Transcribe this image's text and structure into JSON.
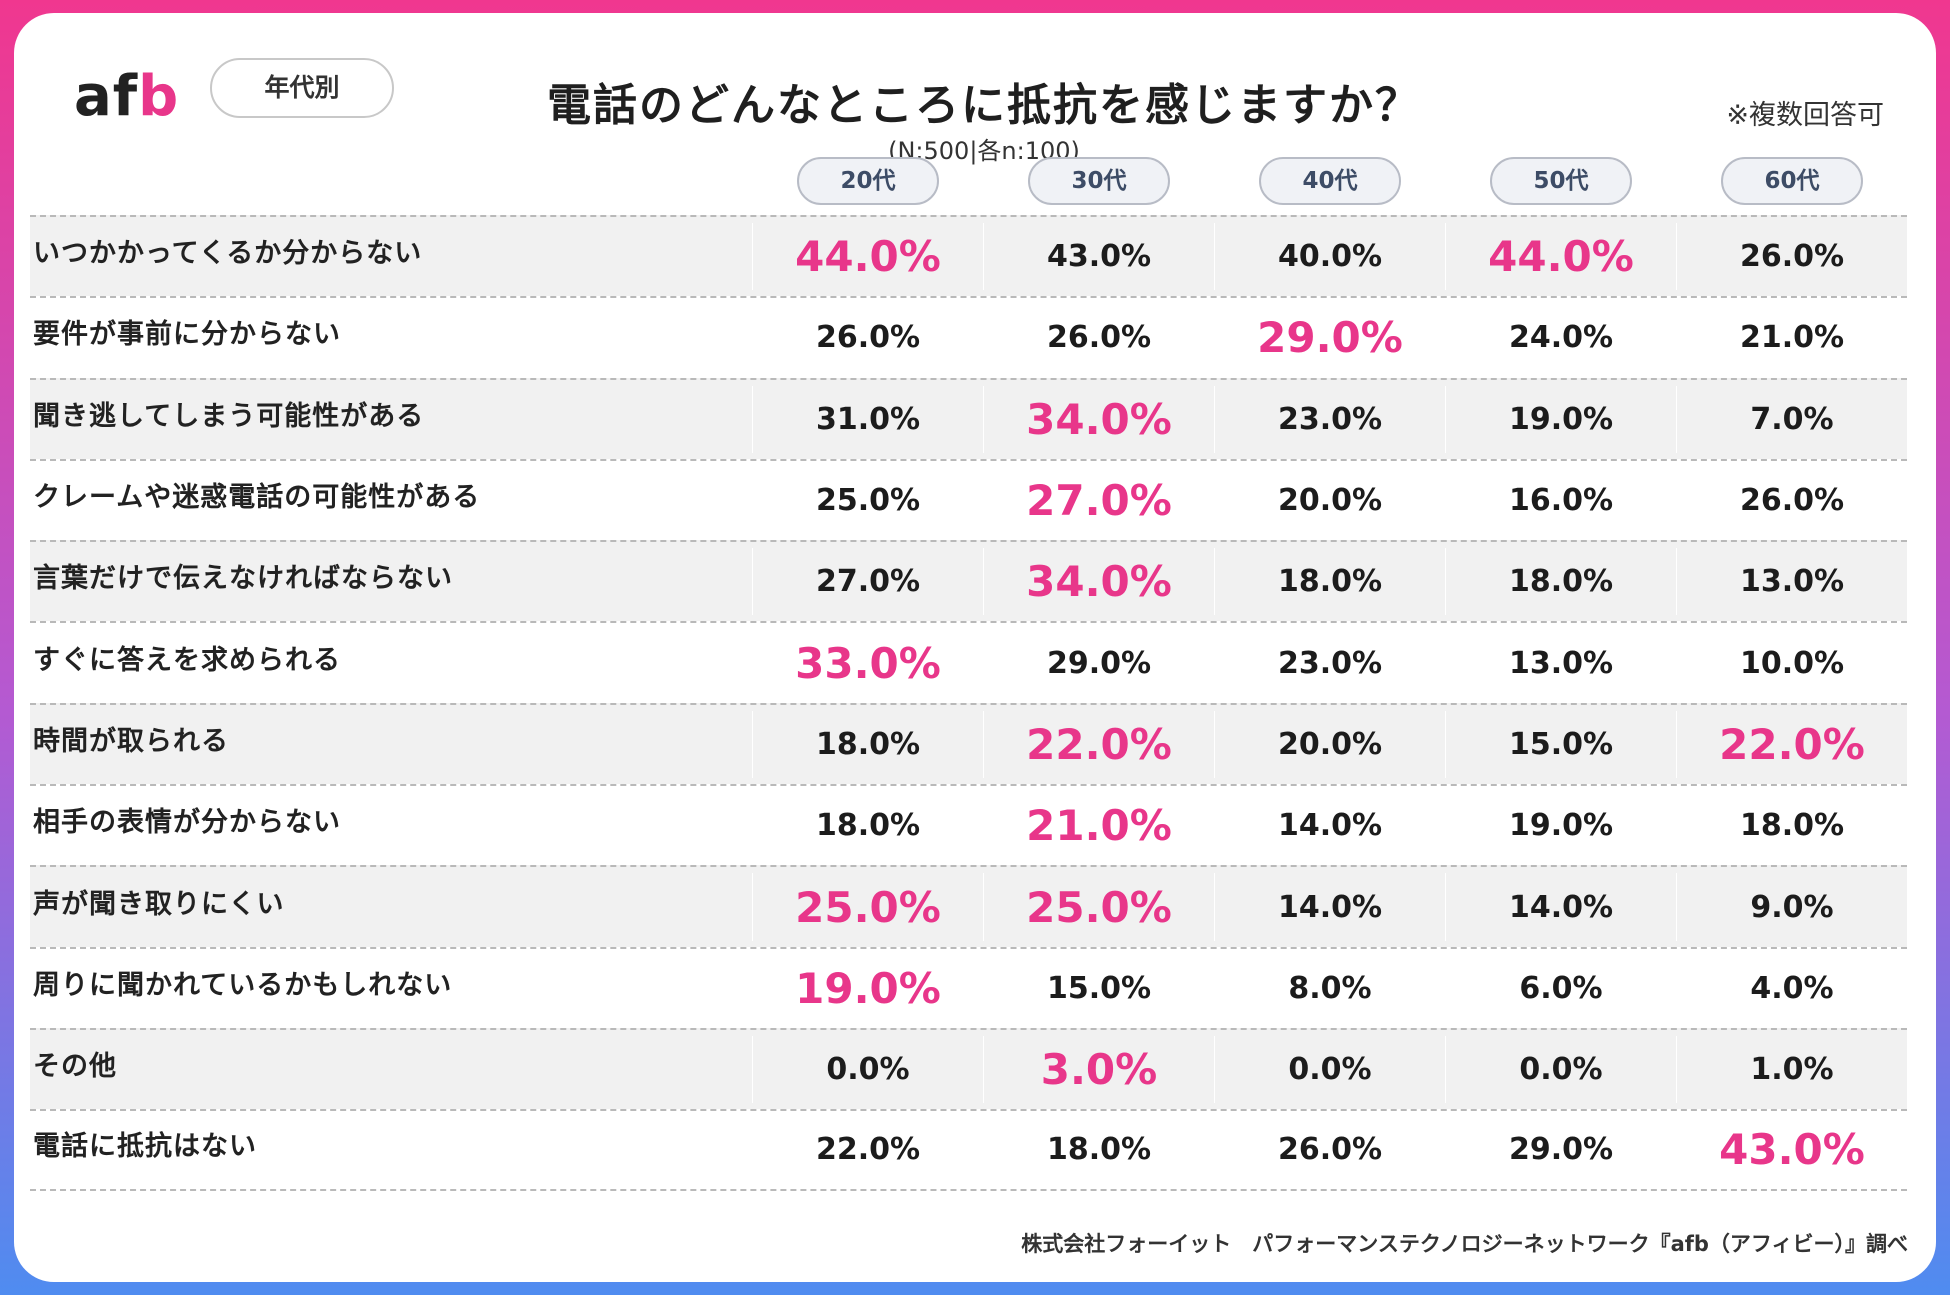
{
  "header": {
    "logo": "afb",
    "segment": "年代別",
    "title": "電話のどんなところに抵抗を感じますか？",
    "subtitle": "(N:500|各n:100)",
    "note": "※複数回答可"
  },
  "footer": {
    "credit": "株式会社フォーイット　パフォーマンステクノロジーネットワーク『afb（アフィビー）』調べ"
  },
  "colors": {
    "highlight": "#e8368a",
    "text": "#1c1c1c",
    "shaded_row": "#f1f1f1"
  },
  "chart_data": {
    "type": "table",
    "title": "電話のどんなところに抵抗を感じますか？",
    "columns": [
      "20代",
      "30代",
      "40代",
      "50代",
      "60代"
    ],
    "rows": [
      {
        "label": "いつかかってくるか分からない",
        "values": [
          "44.0%",
          "43.0%",
          "40.0%",
          "44.0%",
          "26.0%"
        ],
        "highlight": [
          0,
          3
        ]
      },
      {
        "label": "要件が事前に分からない",
        "values": [
          "26.0%",
          "26.0%",
          "29.0%",
          "24.0%",
          "21.0%"
        ],
        "highlight": [
          2
        ]
      },
      {
        "label": "聞き逃してしまう可能性がある",
        "values": [
          "31.0%",
          "34.0%",
          "23.0%",
          "19.0%",
          "7.0%"
        ],
        "highlight": [
          1
        ]
      },
      {
        "label": "クレームや迷惑電話の可能性がある",
        "values": [
          "25.0%",
          "27.0%",
          "20.0%",
          "16.0%",
          "26.0%"
        ],
        "highlight": [
          1
        ]
      },
      {
        "label": "言葉だけで伝えなければならない",
        "values": [
          "27.0%",
          "34.0%",
          "18.0%",
          "18.0%",
          "13.0%"
        ],
        "highlight": [
          1
        ]
      },
      {
        "label": "すぐに答えを求められる",
        "values": [
          "33.0%",
          "29.0%",
          "23.0%",
          "13.0%",
          "10.0%"
        ],
        "highlight": [
          0
        ]
      },
      {
        "label": "時間が取られる",
        "values": [
          "18.0%",
          "22.0%",
          "20.0%",
          "15.0%",
          "22.0%"
        ],
        "highlight": [
          1,
          4
        ]
      },
      {
        "label": "相手の表情が分からない",
        "values": [
          "18.0%",
          "21.0%",
          "14.0%",
          "19.0%",
          "18.0%"
        ],
        "highlight": [
          1
        ]
      },
      {
        "label": "声が聞き取りにくい",
        "values": [
          "25.0%",
          "25.0%",
          "14.0%",
          "14.0%",
          "9.0%"
        ],
        "highlight": [
          0,
          1
        ]
      },
      {
        "label": "周りに聞かれているかもしれない",
        "values": [
          "19.0%",
          "15.0%",
          "8.0%",
          "6.0%",
          "4.0%"
        ],
        "highlight": [
          0
        ]
      },
      {
        "label": "その他",
        "values": [
          "0.0%",
          "3.0%",
          "0.0%",
          "0.0%",
          "1.0%"
        ],
        "highlight": [
          1
        ]
      },
      {
        "label": "電話に抵抗はない",
        "values": [
          "22.0%",
          "18.0%",
          "26.0%",
          "29.0%",
          "43.0%"
        ],
        "highlight": [
          4
        ]
      }
    ]
  }
}
